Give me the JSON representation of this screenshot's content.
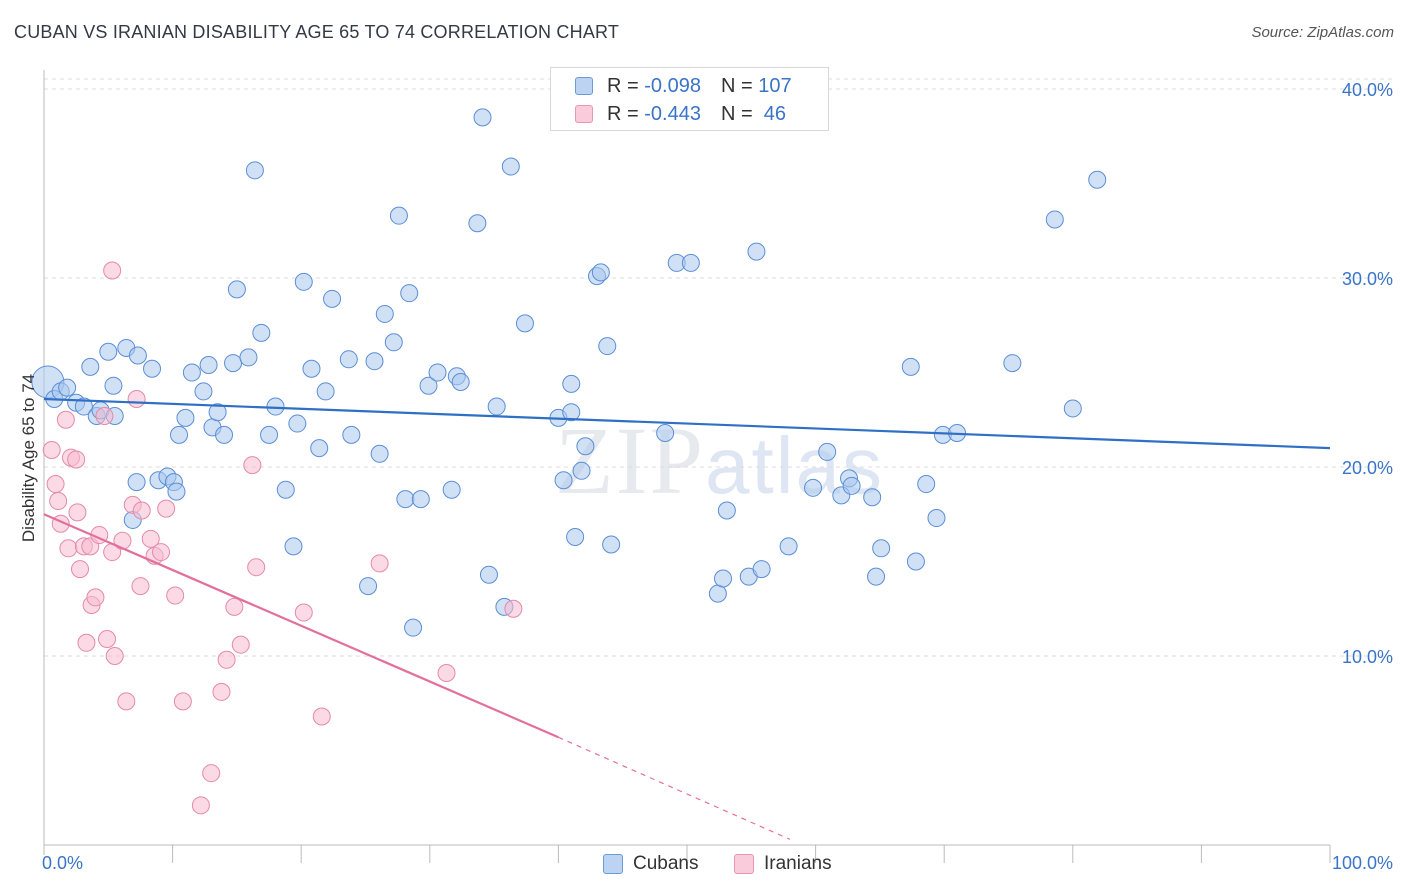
{
  "title": "CUBAN VS IRANIAN DISABILITY AGE 65 TO 74 CORRELATION CHART",
  "source": "Source: ZipAtlas.com",
  "watermark": {
    "zip": "ZIP",
    "atlas": "atlas"
  },
  "legend": {
    "cubans": {
      "r_label": "R = ",
      "r_value": "-0.098",
      "n_label": "N = ",
      "n_value": "107"
    },
    "iranians": {
      "r_label": "R = ",
      "r_value": "-0.443",
      "n_label": "N = ",
      "n_value": " 46"
    }
  },
  "colors": {
    "cubans_fill": "#a9c8ee",
    "cubans_stroke": "#5b8ed6",
    "cubans_line": "#2f6fc6",
    "iranians_fill": "#f7bcd0",
    "iranians_stroke": "#e48aa8",
    "iranians_line": "#e2709a",
    "tick_text": "#3a74c8",
    "grid": "#dcdcdc"
  },
  "chart_data": {
    "type": "scatter",
    "title": "CUBAN VS IRANIAN DISABILITY AGE 65 TO 74 CORRELATION CHART",
    "xlabel": "",
    "ylabel": "Disability Age 65 to 74",
    "xlim": [
      0,
      100
    ],
    "ylim": [
      0,
      40.5
    ],
    "x_tick_labels": [
      {
        "v": 0,
        "label": "0.0%"
      },
      {
        "v": 100,
        "label": "100.0%"
      }
    ],
    "y_tick_labels": [
      {
        "v": 10,
        "label": "10.0%"
      },
      {
        "v": 20,
        "label": "20.0%"
      },
      {
        "v": 30,
        "label": "30.0%"
      },
      {
        "v": 40,
        "label": "40.0%"
      }
    ],
    "grid": true,
    "legend_position": "top-center",
    "series": [
      {
        "name": "Cubans",
        "trend": {
          "x": [
            0,
            100
          ],
          "y": [
            23.6,
            21.0
          ],
          "style": "solid"
        },
        "points": [
          [
            0.3,
            24.5
          ],
          [
            0.8,
            23.6
          ],
          [
            1.3,
            24.0
          ],
          [
            1.8,
            24.2
          ],
          [
            2.5,
            23.4
          ],
          [
            3.1,
            23.2
          ],
          [
            3.6,
            25.3
          ],
          [
            4.1,
            22.7
          ],
          [
            4.4,
            23.0
          ],
          [
            5.5,
            22.7
          ],
          [
            5.0,
            26.1
          ],
          [
            5.4,
            24.3
          ],
          [
            6.4,
            26.3
          ],
          [
            7.3,
            25.9
          ],
          [
            8.4,
            25.2
          ],
          [
            7.2,
            19.2
          ],
          [
            6.9,
            17.2
          ],
          [
            8.9,
            19.3
          ],
          [
            9.6,
            19.5
          ],
          [
            10.1,
            19.2
          ],
          [
            10.3,
            18.7
          ],
          [
            10.5,
            21.7
          ],
          [
            11.0,
            22.6
          ],
          [
            11.5,
            25.0
          ],
          [
            12.4,
            24.0
          ],
          [
            12.8,
            25.4
          ],
          [
            13.1,
            22.1
          ],
          [
            13.5,
            22.9
          ],
          [
            14.0,
            21.7
          ],
          [
            14.7,
            25.5
          ],
          [
            15.0,
            29.4
          ],
          [
            15.9,
            25.8
          ],
          [
            16.4,
            35.7
          ],
          [
            16.9,
            27.1
          ],
          [
            17.5,
            21.7
          ],
          [
            18.0,
            23.2
          ],
          [
            18.8,
            18.8
          ],
          [
            19.4,
            15.8
          ],
          [
            19.7,
            22.3
          ],
          [
            20.2,
            29.8
          ],
          [
            20.8,
            25.2
          ],
          [
            21.4,
            21.0
          ],
          [
            21.9,
            24.0
          ],
          [
            22.4,
            28.9
          ],
          [
            23.7,
            25.7
          ],
          [
            23.9,
            21.7
          ],
          [
            25.2,
            13.7
          ],
          [
            25.7,
            25.6
          ],
          [
            26.1,
            20.7
          ],
          [
            26.5,
            28.1
          ],
          [
            27.2,
            26.6
          ],
          [
            27.6,
            33.3
          ],
          [
            28.1,
            18.3
          ],
          [
            28.4,
            29.2
          ],
          [
            28.7,
            11.5
          ],
          [
            29.3,
            18.3
          ],
          [
            29.9,
            24.3
          ],
          [
            30.6,
            25.0
          ],
          [
            31.7,
            18.8
          ],
          [
            32.1,
            24.8
          ],
          [
            32.4,
            24.5
          ],
          [
            33.7,
            32.9
          ],
          [
            34.1,
            38.5
          ],
          [
            34.6,
            14.3
          ],
          [
            35.2,
            23.2
          ],
          [
            35.8,
            12.6
          ],
          [
            36.3,
            35.9
          ],
          [
            37.4,
            27.6
          ],
          [
            40.0,
            22.6
          ],
          [
            40.4,
            19.3
          ],
          [
            41.0,
            24.4
          ],
          [
            41.3,
            16.3
          ],
          [
            41.8,
            19.8
          ],
          [
            42.1,
            21.1
          ],
          [
            43.0,
            30.1
          ],
          [
            43.3,
            30.3
          ],
          [
            43.8,
            26.4
          ],
          [
            44.1,
            15.9
          ],
          [
            48.3,
            21.8
          ],
          [
            49.2,
            30.8
          ],
          [
            50.3,
            30.8
          ],
          [
            53.1,
            17.7
          ],
          [
            52.4,
            13.3
          ],
          [
            52.8,
            14.1
          ],
          [
            54.8,
            14.2
          ],
          [
            55.8,
            14.6
          ],
          [
            55.4,
            31.4
          ],
          [
            57.9,
            15.8
          ],
          [
            59.8,
            18.9
          ],
          [
            60.9,
            20.8
          ],
          [
            62.0,
            18.5
          ],
          [
            62.6,
            19.4
          ],
          [
            62.8,
            19.0
          ],
          [
            64.4,
            18.4
          ],
          [
            64.7,
            14.2
          ],
          [
            65.1,
            15.7
          ],
          [
            67.4,
            25.3
          ],
          [
            67.8,
            15.0
          ],
          [
            68.6,
            19.1
          ],
          [
            69.4,
            17.3
          ],
          [
            69.9,
            21.7
          ],
          [
            71.0,
            21.8
          ],
          [
            75.3,
            25.5
          ],
          [
            78.6,
            33.1
          ],
          [
            80.0,
            23.1
          ],
          [
            81.9,
            35.2
          ],
          [
            41.0,
            22.9
          ]
        ]
      },
      {
        "name": "Iranians",
        "trend": {
          "x": [
            0,
            40
          ],
          "y": [
            17.5,
            5.7
          ],
          "style": "solid",
          "extension_to": [
            58,
            0.3
          ],
          "extension_style": "dashed"
        },
        "points": [
          [
            0.6,
            20.9
          ],
          [
            0.9,
            19.1
          ],
          [
            1.1,
            18.2
          ],
          [
            1.3,
            17.0
          ],
          [
            1.7,
            22.5
          ],
          [
            1.9,
            15.7
          ],
          [
            2.1,
            20.5
          ],
          [
            2.5,
            20.4
          ],
          [
            2.6,
            17.6
          ],
          [
            2.8,
            14.6
          ],
          [
            3.1,
            15.8
          ],
          [
            3.3,
            10.7
          ],
          [
            3.6,
            15.8
          ],
          [
            3.7,
            12.7
          ],
          [
            4.0,
            13.1
          ],
          [
            4.3,
            16.4
          ],
          [
            4.7,
            22.7
          ],
          [
            4.9,
            10.9
          ],
          [
            5.3,
            15.5
          ],
          [
            5.5,
            10.0
          ],
          [
            6.1,
            16.1
          ],
          [
            6.4,
            7.6
          ],
          [
            6.9,
            18.0
          ],
          [
            7.2,
            23.6
          ],
          [
            7.5,
            13.7
          ],
          [
            7.6,
            17.7
          ],
          [
            8.3,
            16.2
          ],
          [
            8.6,
            15.3
          ],
          [
            9.1,
            15.5
          ],
          [
            9.5,
            17.8
          ],
          [
            10.2,
            13.2
          ],
          [
            10.8,
            7.6
          ],
          [
            12.2,
            2.1
          ],
          [
            13.0,
            3.8
          ],
          [
            13.8,
            8.1
          ],
          [
            14.2,
            9.8
          ],
          [
            14.8,
            12.6
          ],
          [
            15.3,
            10.6
          ],
          [
            16.2,
            20.1
          ],
          [
            16.5,
            14.7
          ],
          [
            20.2,
            12.3
          ],
          [
            21.6,
            6.8
          ],
          [
            26.1,
            14.9
          ],
          [
            31.3,
            9.1
          ],
          [
            36.5,
            12.5
          ],
          [
            5.3,
            30.4
          ]
        ]
      }
    ]
  }
}
